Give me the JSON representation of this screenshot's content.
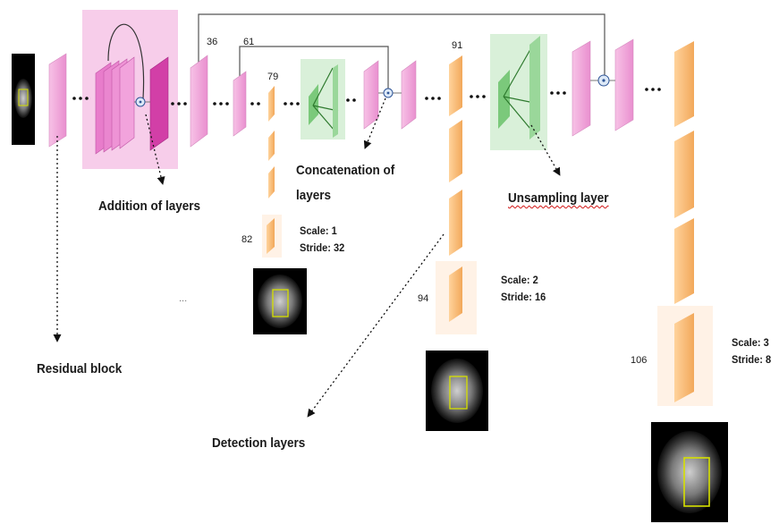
{
  "layer_numbers": {
    "n36": "36",
    "n61": "61",
    "n79": "79",
    "n82": "82",
    "n91": "91",
    "n94": "94",
    "n106": "106"
  },
  "labels": {
    "addition": "Addition of layers",
    "concat_line1": "Concatenation of",
    "concat_line2": "layers",
    "upsampling": "Unsampling layer",
    "residual": "Residual block",
    "detection": "Detection layers",
    "ellipsis": "..."
  },
  "scales": [
    {
      "scale": "Scale: 1",
      "stride": "Stride: 32"
    },
    {
      "scale": "Scale: 2",
      "stride": "Stride: 16"
    },
    {
      "scale": "Scale: 3",
      "stride": "Stride: 8"
    }
  ],
  "colors": {
    "pink_layer": "#f2a6dc",
    "magenta_layer": "#d23fa7",
    "orange_layer": "#f8bc7a",
    "green_layer": "#9ad79a",
    "pink_highlight": "#f7cdea",
    "green_highlight": "#d3efd3",
    "peach_highlight": "#fff2e6",
    "bbox": "#d6e000"
  },
  "icons": [
    "mri-scan-image",
    "sum-node-icon",
    "dotted-arrow",
    "skip-connection-line"
  ]
}
